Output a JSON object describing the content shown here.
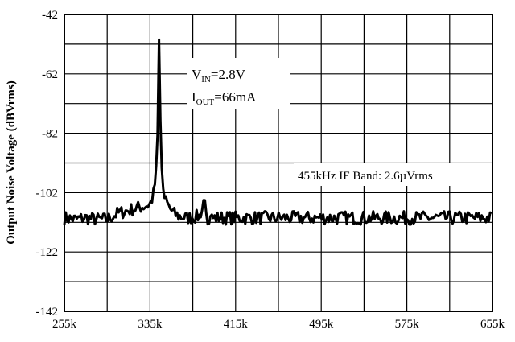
{
  "chart_data": {
    "type": "line",
    "title": "",
    "xlabel": "",
    "ylabel": "Output Noise Voltage (dBVrms)",
    "xlim": [
      255000,
      655000
    ],
    "ylim": [
      -142,
      -42
    ],
    "x_tick_labels": [
      "255k",
      "335k",
      "415k",
      "495k",
      "575k",
      "655k"
    ],
    "y_tick_labels": [
      "-42",
      "-62",
      "-82",
      "-102",
      "-122",
      "-142"
    ],
    "grid": true,
    "annotations": {
      "vin": {
        "main": "V",
        "sub": "IN",
        "rest": "=2.8V"
      },
      "iout": {
        "main": "I",
        "sub": "OUT",
        "rest": "=66mA"
      },
      "band": "455kHz IF Band: 2.6µVrms"
    },
    "series": [
      {
        "x": [
          255000,
          265000,
          275000,
          285000,
          295000,
          305000,
          315000,
          325000,
          335000,
          338000,
          340000,
          342000,
          343500,
          345000,
          346500,
          348000,
          350000,
          353000,
          357000,
          362000,
          370000,
          380000,
          390000,
          400000,
          415000,
          435000,
          455000,
          475000,
          495000,
          515000,
          535000,
          555000,
          575000,
          595000,
          615000,
          635000,
          655000
        ],
        "y": [
          -110.5,
          -111,
          -110.5,
          -111,
          -111,
          -109,
          -108,
          -107,
          -106,
          -103,
          -98,
          -85,
          -48,
          -85,
          -98,
          -103,
          -105,
          -107,
          -109,
          -110,
          -110.5,
          -110,
          -110.5,
          -110.5,
          -110.5,
          -110.5,
          -110.5,
          -110.5,
          -110.5,
          -110.5,
          -110.5,
          -110.5,
          -110.5,
          -110.5,
          -110.5,
          -110.5,
          -110.5
        ]
      }
    ]
  }
}
